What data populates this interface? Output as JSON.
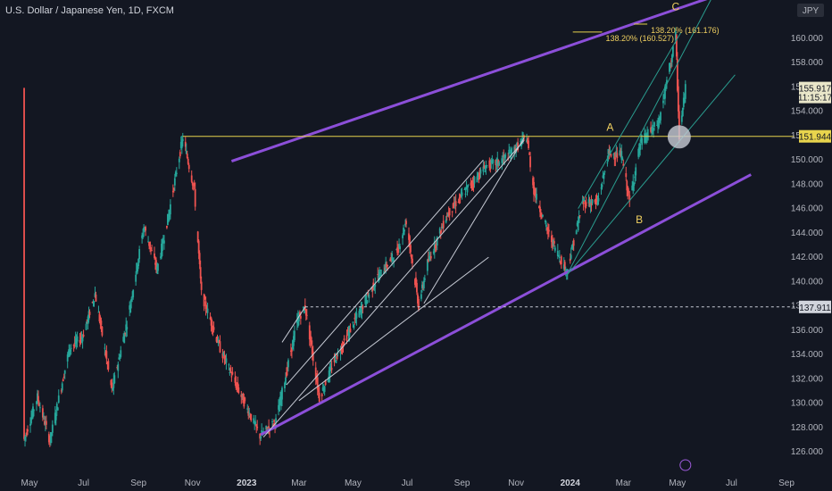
{
  "header": {
    "title": "U.S. Dollar / Japanese Yen, 1D, FXCM"
  },
  "currency_badge": "JPY",
  "colors": {
    "background": "#131722",
    "up": "#26a69a",
    "down": "#ef5350",
    "channel": "#8c4fd9",
    "level": "#e8d44d",
    "fib": "#e8d44d",
    "teal_line": "#2a9d8f",
    "white_line": "#c8ccd6"
  },
  "chart_data": {
    "type": "candlestick",
    "title": "U.S. Dollar / Japanese Yen, 1D, FXCM",
    "ylabel": "JPY",
    "ylim": [
      125,
      163
    ],
    "y_ticks": [
      "126.000",
      "128.000",
      "130.000",
      "132.000",
      "134.000",
      "136.000",
      "138.000",
      "140.000",
      "142.000",
      "144.000",
      "146.000",
      "148.000",
      "150.000",
      "152.000",
      "154.000",
      "156.000",
      "158.000",
      "160.000"
    ],
    "x_ticks": [
      "May",
      "Jul",
      "Sep",
      "Nov",
      "2023",
      "Mar",
      "May",
      "Jul",
      "Sep",
      "Nov",
      "2024",
      "Mar",
      "May",
      "Jul",
      "Sep"
    ],
    "bold_x_ticks": [
      "2023",
      "2024"
    ],
    "price_path": [
      [
        "2022-04-25",
        127.0
      ],
      [
        "2022-05-10",
        130.5
      ],
      [
        "2022-05-24",
        126.9
      ],
      [
        "2022-06-15",
        134.5
      ],
      [
        "2022-06-30",
        135.5
      ],
      [
        "2022-07-14",
        139.0
      ],
      [
        "2022-08-02",
        131.0
      ],
      [
        "2022-08-20",
        137.0
      ],
      [
        "2022-09-07",
        144.5
      ],
      [
        "2022-09-22",
        141.0
      ],
      [
        "2022-10-05",
        145.5
      ],
      [
        "2022-10-21",
        151.9
      ],
      [
        "2022-11-03",
        147.5
      ],
      [
        "2022-11-11",
        139.0
      ],
      [
        "2022-12-02",
        134.5
      ],
      [
        "2022-12-20",
        131.5
      ],
      [
        "2023-01-16",
        127.3
      ],
      [
        "2023-02-03",
        128.5
      ],
      [
        "2023-02-28",
        137.0
      ],
      [
        "2023-03-08",
        137.9
      ],
      [
        "2023-03-24",
        130.4
      ],
      [
        "2023-04-10",
        133.5
      ],
      [
        "2023-05-01",
        136.5
      ],
      [
        "2023-05-30",
        140.5
      ],
      [
        "2023-06-20",
        142.5
      ],
      [
        "2023-06-30",
        145.0
      ],
      [
        "2023-07-14",
        138.0
      ],
      [
        "2023-07-24",
        141.5
      ],
      [
        "2023-08-15",
        145.5
      ],
      [
        "2023-09-05",
        147.5
      ],
      [
        "2023-09-28",
        149.5
      ],
      [
        "2023-10-12",
        149.8
      ],
      [
        "2023-10-25",
        150.5
      ],
      [
        "2023-11-13",
        151.9
      ],
      [
        "2023-11-21",
        147.5
      ],
      [
        "2023-12-07",
        144.0
      ],
      [
        "2023-12-28",
        140.8
      ],
      [
        "2024-01-15",
        146.5
      ],
      [
        "2024-02-01",
        146.5
      ],
      [
        "2024-02-13",
        150.5
      ],
      [
        "2024-02-28",
        150.4
      ],
      [
        "2024-03-08",
        146.5
      ],
      [
        "2024-03-20",
        151.4
      ],
      [
        "2024-04-10",
        153.1
      ],
      [
        "2024-04-29",
        160.2
      ],
      [
        "2024-05-03",
        151.9
      ],
      [
        "2024-05-10",
        155.9
      ]
    ],
    "horizontal_levels": [
      {
        "label": "151.944",
        "value": 151.944,
        "style": "solid"
      },
      {
        "label": "137.911",
        "value": 137.911,
        "style": "dashed"
      }
    ],
    "current_price": {
      "value": 155.917,
      "label": "155.917",
      "countdown": "11:15:17"
    },
    "fib_levels": [
      {
        "label": "138.20% (160.527)",
        "value": 160.527
      },
      {
        "label": "138.20% (161.176)",
        "value": 161.176
      }
    ],
    "wave_labels": [
      "A",
      "B",
      "C"
    ],
    "channel": {
      "upper": [
        [
          "2022-12-15",
          149.9
        ],
        [
          "2024-07-23",
          164.5
        ]
      ],
      "lower": [
        [
          "2023-01-17",
          127.4
        ],
        [
          "2024-07-23",
          148.8
        ]
      ]
    },
    "grid": false
  }
}
